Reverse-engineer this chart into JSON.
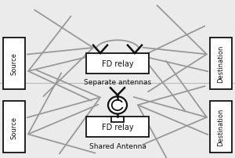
{
  "bg_color": "#ebebeb",
  "top_label": "Separate antennas",
  "bottom_label": "Shared Antenna",
  "fd_relay_label": "FD relay",
  "source_label": "Source",
  "destination_label": "Destination",
  "box_color": "#ffffff",
  "box_edge_color": "#111111",
  "arrow_gray": "#999999",
  "arrow_black": "#111111",
  "line_width": 1.3
}
